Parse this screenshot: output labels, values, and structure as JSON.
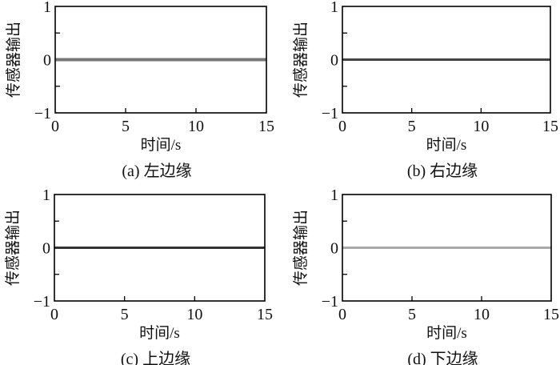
{
  "chart_data": [
    {
      "type": "line",
      "caption": "(a) 左边缘",
      "xlabel": "时间/s",
      "ylabel": "传感器输出",
      "xlim": [
        0,
        15
      ],
      "ylim": [
        -1,
        1
      ],
      "xticks": [
        0,
        5,
        10,
        15
      ],
      "yticks": [
        -1,
        0,
        1
      ],
      "grid": false,
      "series": [
        {
          "x": [
            0,
            15
          ],
          "y": [
            0,
            0
          ],
          "color": "#777777"
        }
      ]
    },
    {
      "type": "line",
      "caption": "(b) 右边缘",
      "xlabel": "时间/s",
      "ylabel": "传感器输出",
      "xlim": [
        0,
        15
      ],
      "ylim": [
        -1,
        1
      ],
      "xticks": [
        0,
        5,
        10,
        15
      ],
      "yticks": [
        -1,
        0,
        1
      ],
      "grid": false,
      "series": [
        {
          "x": [
            0,
            15
          ],
          "y": [
            0,
            0
          ],
          "color": "#444444"
        }
      ]
    },
    {
      "type": "line",
      "caption": "(c) 上边缘",
      "xlabel": "时间/s",
      "ylabel": "传感器输出",
      "xlim": [
        0,
        15
      ],
      "ylim": [
        -1,
        1
      ],
      "xticks": [
        0,
        5,
        10,
        15
      ],
      "yticks": [
        -1,
        0,
        1
      ],
      "grid": false,
      "series": [
        {
          "x": [
            0,
            15
          ],
          "y": [
            0,
            0
          ],
          "color": "#333333"
        }
      ]
    },
    {
      "type": "line",
      "caption": "(d) 下边缘",
      "xlabel": "时间/s",
      "ylabel": "传感器输出",
      "xlim": [
        0,
        15
      ],
      "ylim": [
        -1,
        1
      ],
      "xticks": [
        0,
        5,
        10,
        15
      ],
      "yticks": [
        -1,
        0,
        1
      ],
      "grid": false,
      "series": [
        {
          "x": [
            0,
            15
          ],
          "y": [
            0,
            0
          ],
          "color": "#aaaaaa"
        }
      ]
    }
  ]
}
